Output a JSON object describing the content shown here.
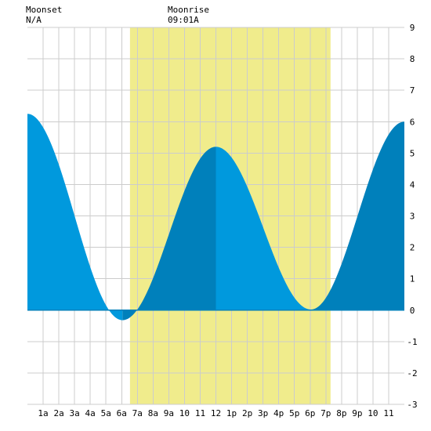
{
  "header": {
    "moonset_label": "Moonset",
    "moonset_time": "N/A",
    "moonrise_label": "Moonrise",
    "moonrise_time": "09:01A"
  },
  "chart_data": {
    "type": "area",
    "title": "",
    "xlabel": "",
    "ylabel": "",
    "xlim": [
      0,
      24
    ],
    "ylim": [
      -3,
      9
    ],
    "grid": true,
    "y_ticks": [
      -3,
      -2,
      -1,
      0,
      1,
      2,
      3,
      4,
      5,
      6,
      7,
      8,
      9
    ],
    "x_ticks": [
      {
        "x": 1,
        "label": "1a"
      },
      {
        "x": 2,
        "label": "2a"
      },
      {
        "x": 3,
        "label": "3a"
      },
      {
        "x": 4,
        "label": "4a"
      },
      {
        "x": 5,
        "label": "5a"
      },
      {
        "x": 6,
        "label": "6a"
      },
      {
        "x": 7,
        "label": "7a"
      },
      {
        "x": 8,
        "label": "8a"
      },
      {
        "x": 9,
        "label": "9a"
      },
      {
        "x": 10,
        "label": "10"
      },
      {
        "x": 11,
        "label": "11"
      },
      {
        "x": 12,
        "label": "12"
      },
      {
        "x": 13,
        "label": "1p"
      },
      {
        "x": 14,
        "label": "2p"
      },
      {
        "x": 15,
        "label": "3p"
      },
      {
        "x": 16,
        "label": "4p"
      },
      {
        "x": 17,
        "label": "5p"
      },
      {
        "x": 18,
        "label": "6p"
      },
      {
        "x": 19,
        "label": "7p"
      },
      {
        "x": 20,
        "label": "8p"
      },
      {
        "x": 21,
        "label": "9p"
      },
      {
        "x": 22,
        "label": "10"
      },
      {
        "x": 23,
        "label": "11"
      }
    ],
    "daylight_band": {
      "start": 6.53,
      "end": 19.3,
      "color": "#f0ec8c"
    },
    "tide_extremes": [
      {
        "x": 0.0,
        "y": 6.25
      },
      {
        "x": 6.05,
        "y": -0.32
      },
      {
        "x": 12.0,
        "y": 5.2
      },
      {
        "x": 18.05,
        "y": 0.02
      },
      {
        "x": 24.0,
        "y": 6.0
      }
    ],
    "colors": {
      "falling": "#0099dd",
      "rising": "#0080bb",
      "grid": "#cccccc",
      "background": "#ffffff"
    }
  }
}
